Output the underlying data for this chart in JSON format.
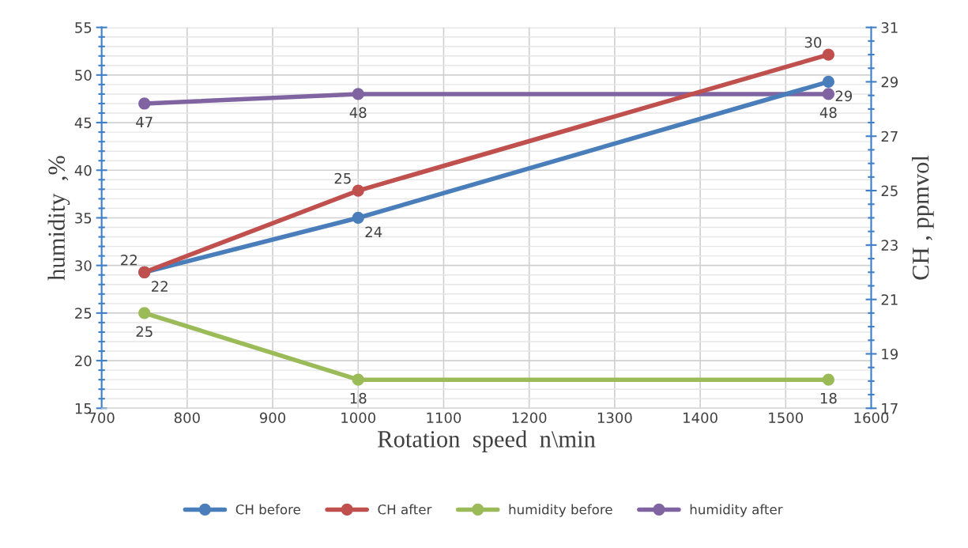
{
  "chart_data": {
    "type": "line",
    "xlabel": "Rotation  speed  n\\min",
    "ylabel": "humidity  ,%",
    "y2label": "CH , ppmvol",
    "x": [
      750,
      1000,
      1550
    ],
    "series": [
      {
        "name": "CH before",
        "color": "#4a7ebb",
        "values": [
          22,
          24,
          29
        ],
        "axis": "y2"
      },
      {
        "name": "CH after",
        "color": "#c0504d",
        "values": [
          22,
          25,
          30
        ],
        "axis": "y2"
      },
      {
        "name": "humidity before",
        "color": "#9bbb59",
        "values": [
          25,
          18,
          18
        ]
      },
      {
        "name": "humidity after",
        "color": "#8064a2",
        "values": [
          47,
          48,
          48
        ]
      }
    ],
    "xlim": [
      700,
      1600
    ],
    "xticks": [
      700,
      800,
      900,
      1000,
      1100,
      1200,
      1300,
      1400,
      1500,
      1600
    ],
    "ylim": [
      15,
      55
    ],
    "yticks": [
      15,
      20,
      25,
      30,
      35,
      40,
      45,
      50,
      55
    ],
    "y2lim": [
      17,
      31
    ],
    "y2ticks": [
      17,
      19,
      21,
      23,
      25,
      27,
      29,
      31
    ],
    "data_labels": true,
    "grid": true,
    "legend": "bottom",
    "marker": "circle",
    "line_style": "solid"
  }
}
